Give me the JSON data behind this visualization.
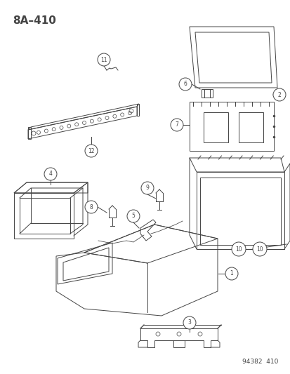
{
  "title": "8A–410",
  "footer": "94382  410",
  "bg_color": "#ffffff",
  "line_color": "#444444",
  "lw": 0.7,
  "title_fontsize": 11,
  "footer_fontsize": 6.5,
  "circle_r": 0.018,
  "circle_fontsize": 5.5
}
